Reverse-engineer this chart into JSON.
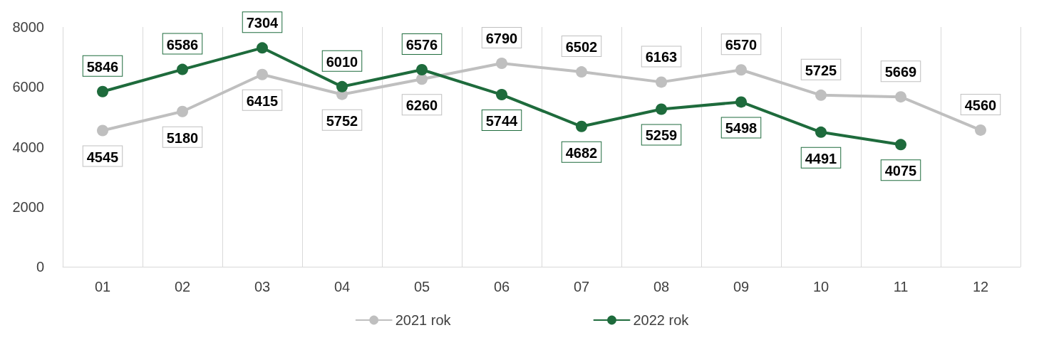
{
  "chart_data": {
    "type": "line",
    "categories": [
      "01",
      "02",
      "03",
      "04",
      "05",
      "06",
      "07",
      "08",
      "09",
      "10",
      "11",
      "12"
    ],
    "series": [
      {
        "name": "2021 rok",
        "color": "#bfbfbf",
        "values": [
          4545,
          5180,
          6415,
          5752,
          6260,
          6790,
          6502,
          6163,
          6570,
          5725,
          5669,
          4560
        ]
      },
      {
        "name": "2022 rok",
        "color": "#1e6b3c",
        "values": [
          5846,
          6586,
          7304,
          6010,
          6576,
          5744,
          4682,
          5259,
          5498,
          4491,
          4075,
          null
        ]
      }
    ],
    "ylim": [
      0,
      8000
    ],
    "yticks": [
      0,
      2000,
      4000,
      6000,
      8000
    ],
    "grid": "x",
    "legend": "bottom",
    "marker": "circle",
    "line_style": "solid",
    "data_labels": true
  }
}
